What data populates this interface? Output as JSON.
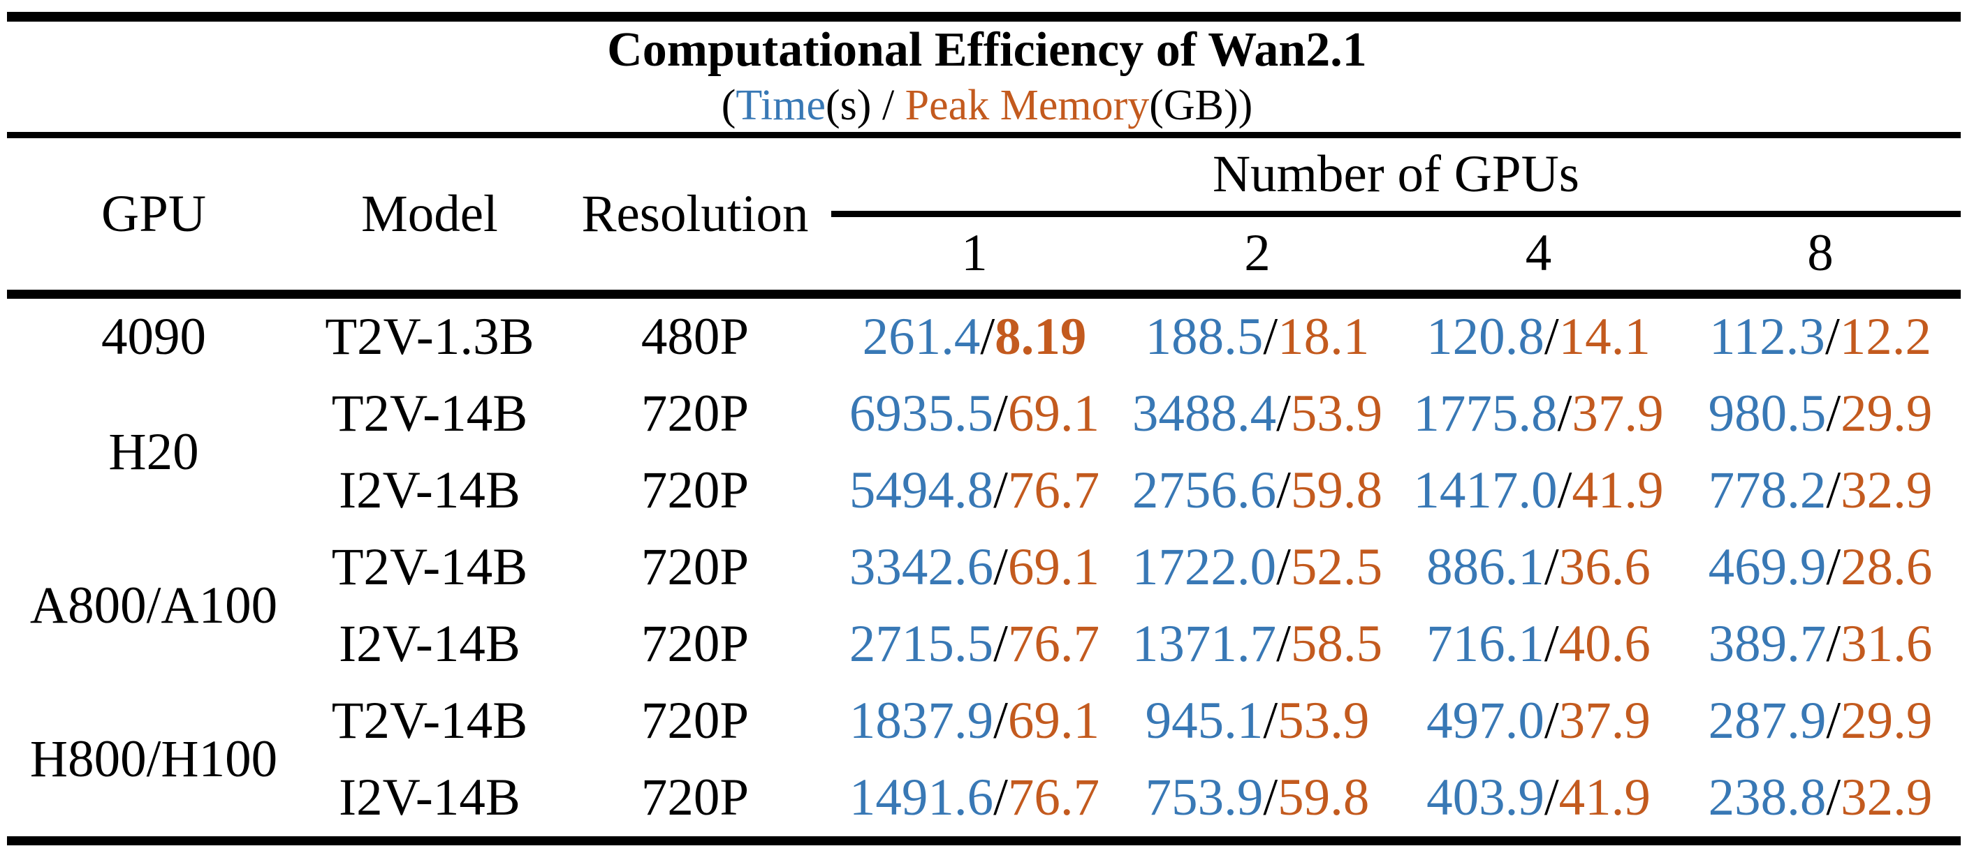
{
  "title": "Computational Efficiency of Wan2.1",
  "subtitle": {
    "open_paren": "(",
    "time_label": "Time",
    "time_unit": "(s)",
    "separator": " / ",
    "memory_label": "Peak Memory",
    "memory_unit": "(GB))"
  },
  "colors": {
    "time_blue": "#3878B5",
    "memory_orange": "#C35A1E",
    "rule_black": "#000000"
  },
  "header": {
    "gpu": "GPU",
    "model": "Model",
    "resolution": "Resolution",
    "group": "Number of GPUs",
    "counts": [
      "1",
      "2",
      "4",
      "8"
    ]
  },
  "value_separator": "/",
  "rows": [
    {
      "gpu": "4090",
      "gpu_rowspan": 1,
      "model": "T2V-1.3B",
      "resolution": "480P",
      "cells": [
        {
          "time": "261.4",
          "memory": "8.19",
          "memory_bold": true
        },
        {
          "time": "188.5",
          "memory": "18.1"
        },
        {
          "time": "120.8",
          "memory": "14.1"
        },
        {
          "time": "112.3",
          "memory": "12.2"
        }
      ]
    },
    {
      "gpu": "H20",
      "gpu_rowspan": 2,
      "model": "T2V-14B",
      "resolution": "720P",
      "cells": [
        {
          "time": "6935.5",
          "memory": "69.1"
        },
        {
          "time": "3488.4",
          "memory": "53.9"
        },
        {
          "time": "1775.8",
          "memory": "37.9"
        },
        {
          "time": "980.5",
          "memory": "29.9"
        }
      ]
    },
    {
      "model": "I2V-14B",
      "resolution": "720P",
      "cells": [
        {
          "time": "5494.8",
          "memory": "76.7"
        },
        {
          "time": "2756.6",
          "memory": "59.8"
        },
        {
          "time": "1417.0",
          "memory": "41.9"
        },
        {
          "time": "778.2",
          "memory": "32.9"
        }
      ]
    },
    {
      "gpu": "A800/A100",
      "gpu_rowspan": 2,
      "model": "T2V-14B",
      "resolution": "720P",
      "cells": [
        {
          "time": "3342.6",
          "memory": "69.1"
        },
        {
          "time": "1722.0",
          "memory": "52.5"
        },
        {
          "time": "886.1",
          "memory": "36.6"
        },
        {
          "time": "469.9",
          "memory": "28.6"
        }
      ]
    },
    {
      "model": "I2V-14B",
      "resolution": "720P",
      "cells": [
        {
          "time": "2715.5",
          "memory": "76.7"
        },
        {
          "time": "1371.7",
          "memory": "58.5"
        },
        {
          "time": "716.1",
          "memory": "40.6"
        },
        {
          "time": "389.7",
          "memory": "31.6"
        }
      ]
    },
    {
      "gpu": "H800/H100",
      "gpu_rowspan": 2,
      "model": "T2V-14B",
      "resolution": "720P",
      "cells": [
        {
          "time": "1837.9",
          "memory": "69.1"
        },
        {
          "time": "945.1",
          "memory": "53.9"
        },
        {
          "time": "497.0",
          "memory": "37.9"
        },
        {
          "time": "287.9",
          "memory": "29.9"
        }
      ]
    },
    {
      "model": "I2V-14B",
      "resolution": "720P",
      "cells": [
        {
          "time": "1491.6",
          "memory": "76.7"
        },
        {
          "time": "753.9",
          "memory": "59.8"
        },
        {
          "time": "403.9",
          "memory": "41.9"
        },
        {
          "time": "238.8",
          "memory": "32.9"
        }
      ]
    }
  ],
  "chart_data": {
    "type": "table",
    "title": "Computational Efficiency of Wan2.1",
    "subtitle": "(Time(s) / Peak Memory(GB))",
    "units": {
      "time": "s",
      "peak_memory": "GB"
    },
    "columns": [
      "GPU",
      "Model",
      "Resolution",
      "1 GPU",
      "2 GPUs",
      "4 GPUs",
      "8 GPUs"
    ],
    "gpu_counts": [
      1,
      2,
      4,
      8
    ],
    "rows": [
      {
        "gpu": "4090",
        "model": "T2V-1.3B",
        "resolution": "480P",
        "time_s": [
          261.4,
          188.5,
          120.8,
          112.3
        ],
        "peak_memory_gb": [
          8.19,
          18.1,
          14.1,
          12.2
        ]
      },
      {
        "gpu": "H20",
        "model": "T2V-14B",
        "resolution": "720P",
        "time_s": [
          6935.5,
          3488.4,
          1775.8,
          980.5
        ],
        "peak_memory_gb": [
          69.1,
          53.9,
          37.9,
          29.9
        ]
      },
      {
        "gpu": "H20",
        "model": "I2V-14B",
        "resolution": "720P",
        "time_s": [
          5494.8,
          2756.6,
          1417.0,
          778.2
        ],
        "peak_memory_gb": [
          76.7,
          59.8,
          41.9,
          32.9
        ]
      },
      {
        "gpu": "A800/A100",
        "model": "T2V-14B",
        "resolution": "720P",
        "time_s": [
          3342.6,
          1722.0,
          886.1,
          469.9
        ],
        "peak_memory_gb": [
          69.1,
          52.5,
          36.6,
          28.6
        ]
      },
      {
        "gpu": "A800/A100",
        "model": "I2V-14B",
        "resolution": "720P",
        "time_s": [
          2715.5,
          1371.7,
          716.1,
          389.7
        ],
        "peak_memory_gb": [
          76.7,
          58.5,
          40.6,
          31.6
        ]
      },
      {
        "gpu": "H800/H100",
        "model": "T2V-14B",
        "resolution": "720P",
        "time_s": [
          1837.9,
          945.1,
          497.0,
          287.9
        ],
        "peak_memory_gb": [
          69.1,
          53.9,
          37.9,
          29.9
        ]
      },
      {
        "gpu": "H800/H100",
        "model": "I2V-14B",
        "resolution": "720P",
        "time_s": [
          1491.6,
          753.9,
          403.9,
          238.8
        ],
        "peak_memory_gb": [
          76.7,
          59.8,
          41.9,
          32.9
        ]
      }
    ]
  }
}
